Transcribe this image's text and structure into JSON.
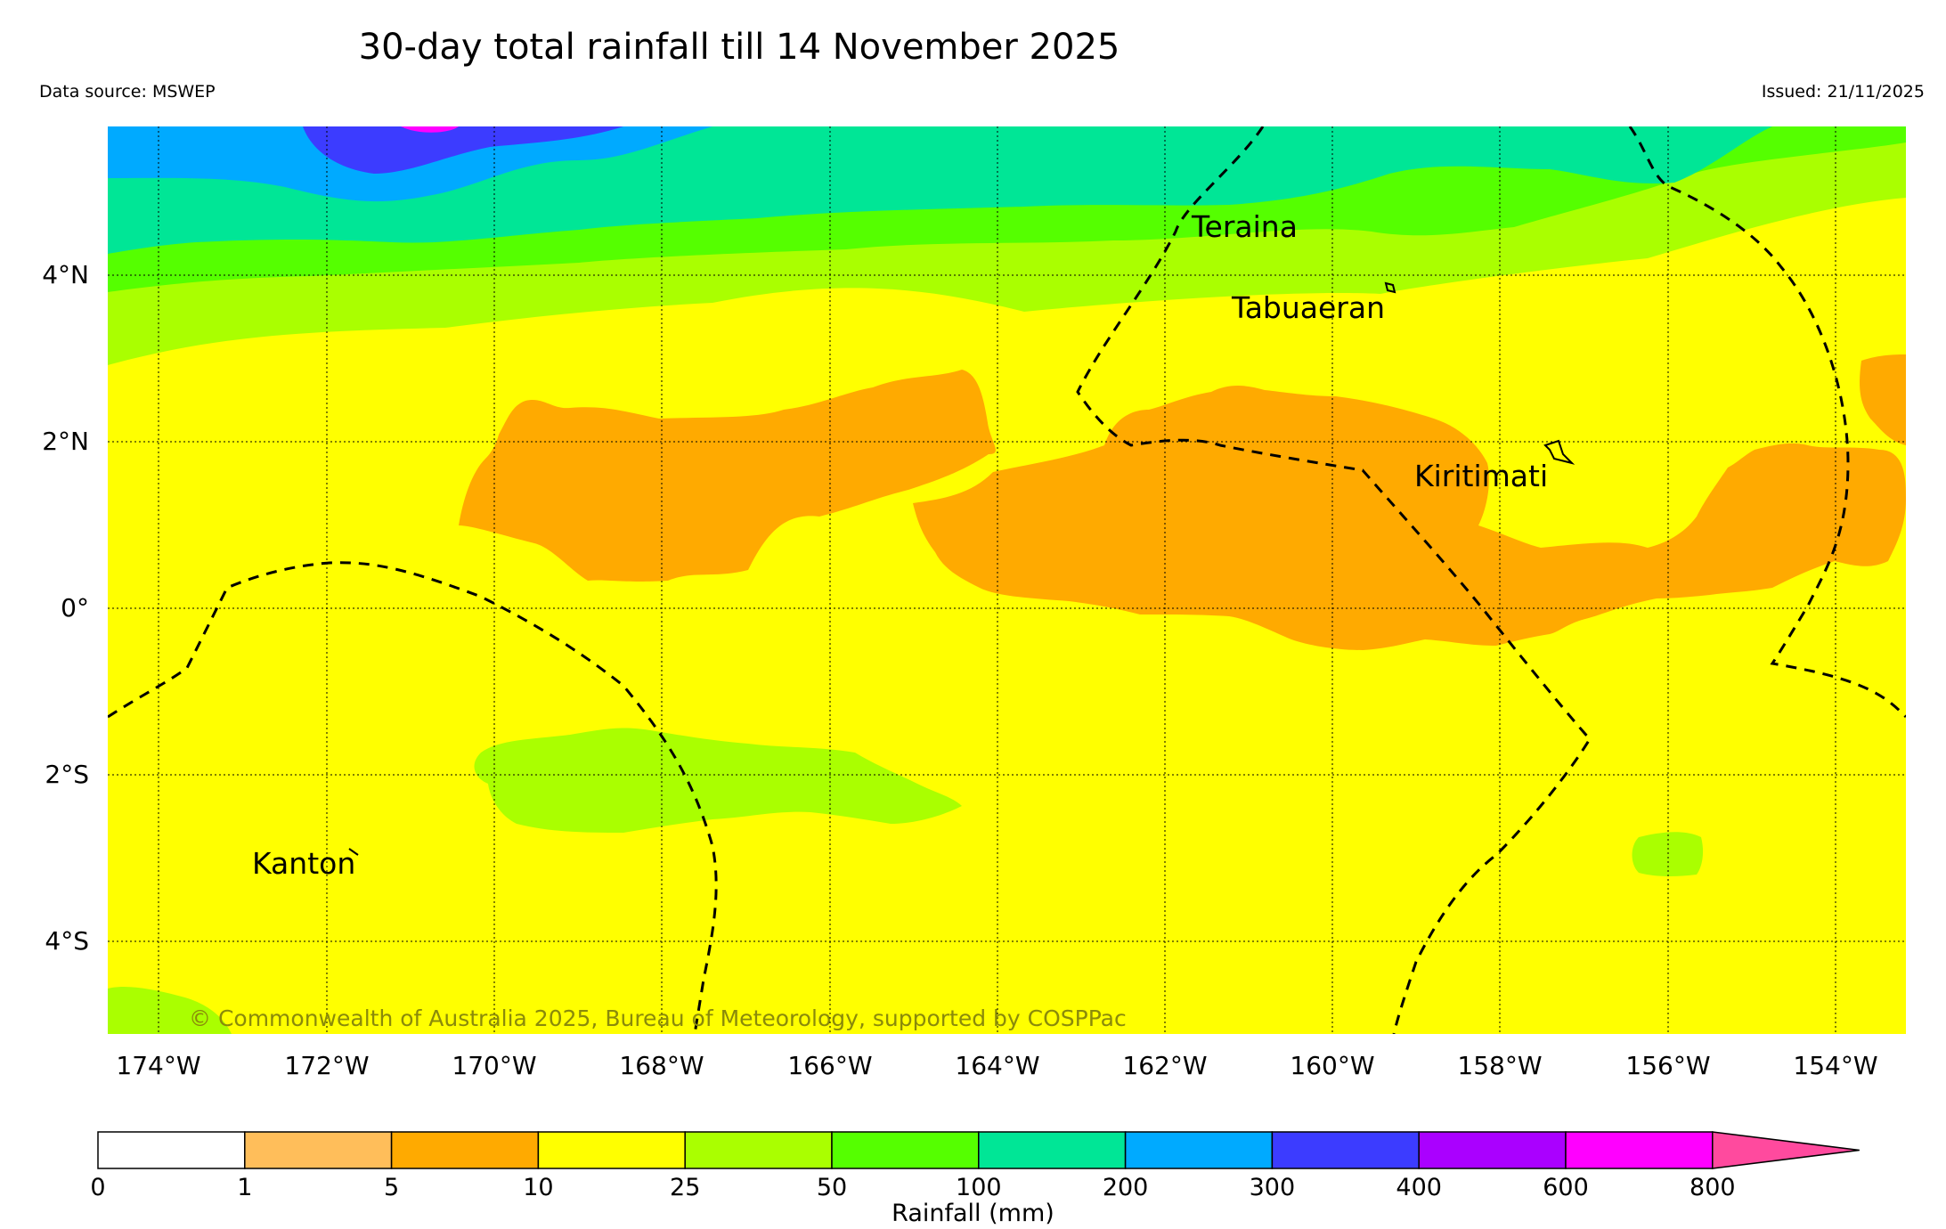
{
  "header": {
    "title": "30-day total rainfall till 14 November 2025",
    "source": "Data source: MSWEP",
    "issued": "Issued: 21/11/2025"
  },
  "map": {
    "lon_labels": [
      "174°W",
      "172°W",
      "170°W",
      "168°W",
      "166°W",
      "164°W",
      "162°W",
      "160°W",
      "158°W",
      "156°W",
      "154°W"
    ],
    "lat_labels": [
      "4°N",
      "2°N",
      "0°",
      "2°S",
      "4°S"
    ],
    "places": [
      "Teraina",
      "Tabuaeran",
      "Kiritimati",
      "Kanton"
    ],
    "copyright": "© Commonwealth of Australia 2025, Bureau of Meteorology, supported by COSPPac",
    "band_colors": {
      "light_orange": "#ffbe5a",
      "orange": "#ffaa00",
      "yellow": "#ffff00",
      "yellow_green": "#aaff00",
      "green": "#55ff00",
      "teal": "#00e696",
      "sky": "#00aaff",
      "blue": "#3c3cff",
      "magenta": "#ff00ff"
    }
  },
  "legend": {
    "tick_labels": [
      "0",
      "1",
      "5",
      "10",
      "25",
      "50",
      "100",
      "200",
      "300",
      "400",
      "600",
      "800"
    ],
    "colors": [
      "#ffffff",
      "#ffbe5a",
      "#ffaa00",
      "#ffff00",
      "#aaff00",
      "#55ff00",
      "#00e696",
      "#00aaff",
      "#3c3cff",
      "#aa00ff",
      "#ff00ff",
      "#ff4a9e"
    ],
    "label": "Rainfall (mm)"
  }
}
